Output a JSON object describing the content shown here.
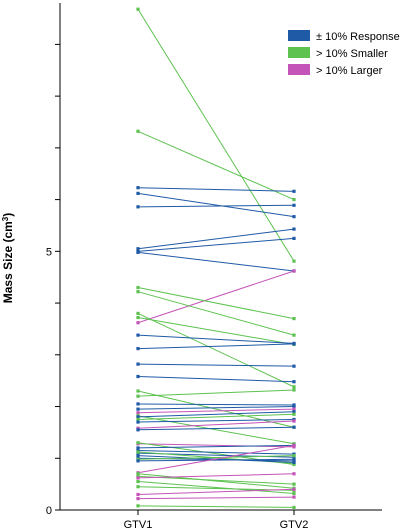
{
  "chart_data": {
    "type": "line",
    "title": "",
    "xlabel": "",
    "ylabel": "Mass Size (cm",
    "ylabel_sup": "3",
    "ylabel_close": ")",
    "categories": [
      "GTV1",
      "GTV2"
    ],
    "ylim": [
      0,
      9.8
    ],
    "yticks": [
      0,
      1,
      2,
      3,
      4,
      5,
      6,
      7,
      8,
      9
    ],
    "ytick_labels": [
      {
        "value": 0,
        "label": "0"
      },
      {
        "value": 5,
        "label": "5"
      }
    ],
    "grid": false,
    "legend_position": "top-right",
    "groups": [
      {
        "key": "response",
        "label": "± 10% Response",
        "color": "#1f5aa6"
      },
      {
        "key": "smaller",
        "label": "> 10% Smaller",
        "color": "#5dc24f"
      },
      {
        "key": "larger",
        "label": "> 10% Larger",
        "color": "#c454b8"
      }
    ],
    "pairs": [
      {
        "group": "smaller",
        "values": [
          9.68,
          4.81
        ]
      },
      {
        "group": "smaller",
        "values": [
          7.32,
          6.0
        ]
      },
      {
        "group": "response",
        "values": [
          6.23,
          6.16
        ]
      },
      {
        "group": "response",
        "values": [
          6.12,
          5.67
        ]
      },
      {
        "group": "response",
        "values": [
          5.86,
          5.89
        ]
      },
      {
        "group": "response",
        "values": [
          5.05,
          5.43
        ]
      },
      {
        "group": "response",
        "values": [
          5.0,
          5.25
        ]
      },
      {
        "group": "response",
        "values": [
          4.98,
          4.62
        ]
      },
      {
        "group": "larger",
        "values": [
          3.62,
          4.62
        ]
      },
      {
        "group": "smaller",
        "values": [
          4.3,
          3.7
        ]
      },
      {
        "group": "smaller",
        "values": [
          4.22,
          3.38
        ]
      },
      {
        "group": "smaller",
        "values": [
          3.8,
          2.38
        ]
      },
      {
        "group": "smaller",
        "values": [
          3.72,
          3.2
        ]
      },
      {
        "group": "response",
        "values": [
          3.38,
          3.22
        ]
      },
      {
        "group": "response",
        "values": [
          3.12,
          3.21
        ]
      },
      {
        "group": "response",
        "values": [
          2.82,
          2.78
        ]
      },
      {
        "group": "response",
        "values": [
          2.58,
          2.48
        ]
      },
      {
        "group": "smaller",
        "values": [
          2.3,
          1.6
        ]
      },
      {
        "group": "smaller",
        "values": [
          2.2,
          2.32
        ]
      },
      {
        "group": "response",
        "values": [
          2.05,
          2.03
        ]
      },
      {
        "group": "response",
        "values": [
          1.95,
          2.0
        ]
      },
      {
        "group": "larger",
        "values": [
          1.88,
          1.95
        ]
      },
      {
        "group": "smaller",
        "values": [
          1.82,
          1.28
        ]
      },
      {
        "group": "response",
        "values": [
          1.8,
          1.9
        ]
      },
      {
        "group": "smaller",
        "values": [
          1.75,
          1.85
        ]
      },
      {
        "group": "response",
        "values": [
          1.7,
          1.75
        ]
      },
      {
        "group": "larger",
        "values": [
          1.58,
          1.72
        ]
      },
      {
        "group": "response",
        "values": [
          1.55,
          1.6
        ]
      },
      {
        "group": "larger",
        "values": [
          1.28,
          1.22
        ]
      },
      {
        "group": "smaller",
        "values": [
          1.3,
          0.88
        ]
      },
      {
        "group": "response",
        "values": [
          1.2,
          1.25
        ]
      },
      {
        "group": "response",
        "values": [
          1.15,
          1.08
        ]
      },
      {
        "group": "response",
        "values": [
          1.1,
          1.02
        ]
      },
      {
        "group": "smaller",
        "values": [
          1.12,
          0.9
        ]
      },
      {
        "group": "response",
        "values": [
          1.05,
          0.92
        ]
      },
      {
        "group": "response",
        "values": [
          1.0,
          0.95
        ]
      },
      {
        "group": "smaller",
        "values": [
          0.98,
          1.05
        ]
      },
      {
        "group": "response",
        "values": [
          0.95,
          0.98
        ]
      },
      {
        "group": "larger",
        "values": [
          0.72,
          1.25
        ]
      },
      {
        "group": "smaller",
        "values": [
          0.7,
          0.42
        ]
      },
      {
        "group": "smaller",
        "values": [
          0.65,
          0.5
        ]
      },
      {
        "group": "larger",
        "values": [
          0.62,
          0.7
        ]
      },
      {
        "group": "smaller",
        "values": [
          0.55,
          0.32
        ]
      },
      {
        "group": "smaller",
        "values": [
          0.45,
          0.38
        ]
      },
      {
        "group": "larger",
        "values": [
          0.3,
          0.4
        ]
      },
      {
        "group": "larger",
        "values": [
          0.22,
          0.25
        ]
      },
      {
        "group": "smaller",
        "values": [
          0.08,
          0.05
        ]
      }
    ]
  }
}
